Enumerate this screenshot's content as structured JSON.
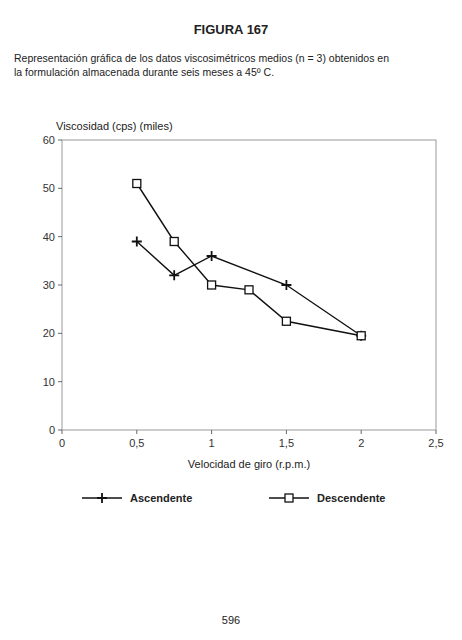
{
  "chart_data": {
    "type": "line",
    "title": "FIGURA  167",
    "subtitle": [
      "Representación gráfica de los datos viscosimétricos medios (n = 3) obtenidos en",
      "la formulación almacenada durante seis meses a 45º C."
    ],
    "annotations": [
      "596"
    ],
    "x_label": "Velocidad de giro (r.p.m.)",
    "y_label": "Viscosidad (cps) (miles)",
    "xlim": [
      0,
      2.5
    ],
    "ylim": [
      0,
      60
    ],
    "xticks": [
      0,
      {
        "value": 0.5,
        "label": "0,5"
      },
      1,
      {
        "value": 1.5,
        "label": "1,5"
      },
      2,
      {
        "value": 2.5,
        "label": "2,5"
      }
    ],
    "yticks": [
      0,
      10,
      20,
      30,
      40,
      50,
      60
    ],
    "grid": false,
    "legend": "bottom",
    "series": [
      {
        "name": "Ascendente",
        "color": "#111111",
        "marker": "plus",
        "x": [
          0.5,
          0.75,
          1.0,
          1.5,
          2.0
        ],
        "values": [
          39,
          32,
          36,
          30,
          19.5
        ]
      },
      {
        "name": "Descendente",
        "color": "#111111",
        "marker": "square",
        "x": [
          0.5,
          0.75,
          1.0,
          1.25,
          1.5,
          2.0
        ],
        "values": [
          51,
          39,
          30,
          29,
          22.5,
          19.5
        ]
      }
    ]
  }
}
